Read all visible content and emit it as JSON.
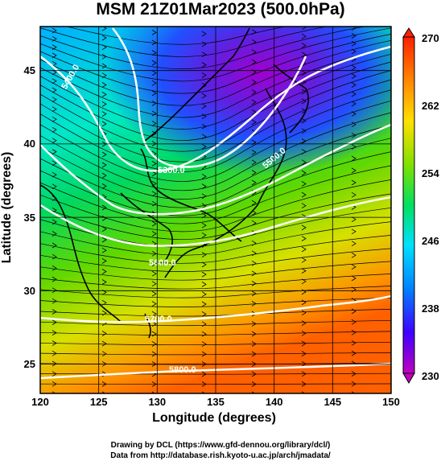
{
  "title": "MSM 21Z01Mar2023 (500.0hPa)",
  "xlabel": "Longitude (degrees)",
  "ylabel": "Latitude  (degrees)",
  "x_ticks": [
    "120",
    "125",
    "130",
    "135",
    "140",
    "145",
    "150"
  ],
  "y_ticks": [
    "45",
    "40",
    "35",
    "30",
    "25"
  ],
  "colorbar_ticks": [
    "270",
    "262",
    "254",
    "246",
    "238",
    "230"
  ],
  "contours": [
    {
      "label": "5400.0",
      "level": 5400
    },
    {
      "label": "5300.0",
      "level": 5300
    },
    {
      "label": "5500.0",
      "level": 5500
    },
    {
      "label": "5600.0",
      "level": 5600
    },
    {
      "label": "5700.0",
      "level": 5700
    },
    {
      "label": "5800.0",
      "level": 5800
    }
  ],
  "credits": {
    "line1": "Drawing by DCL (https://www.gfd-dennou.org/library/dcl/)",
    "line2": "Data from http://database.rish.kyoto-u.ac.jp/arch/jmadata/"
  },
  "colors": {
    "scale": [
      "#c000c0",
      "#4000ff",
      "#0080ff",
      "#00e0ff",
      "#00e060",
      "#80e000",
      "#ffe000",
      "#ff8000",
      "#ff2000"
    ]
  },
  "chart_data": {
    "type": "heatmap",
    "title": "MSM 21Z01Mar2023 (500.0hPa)",
    "xlabel": "Longitude (degrees)",
    "ylabel": "Latitude  (degrees)",
    "xlim": [
      120,
      150
    ],
    "ylim": [
      23,
      48
    ],
    "colorbar_range": [
      230,
      270
    ],
    "colorbar_ticks": [
      230,
      238,
      246,
      254,
      262,
      270
    ],
    "field": "temperature (K) shaded, geopotential height contours, wind streamlines",
    "contour_levels": [
      5300,
      5400,
      5500,
      5600,
      5700,
      5800
    ],
    "grid": true
  }
}
